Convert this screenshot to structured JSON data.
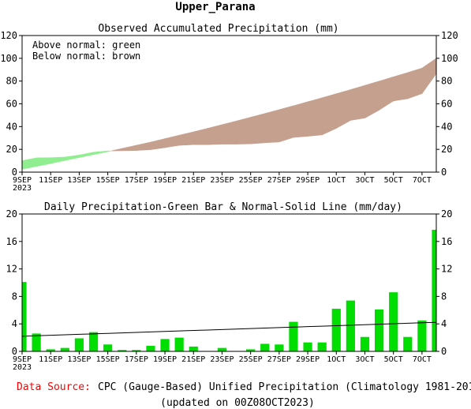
{
  "page": {
    "title": "Upper_Parana",
    "source_label": "Data Source:",
    "source_text": "CPC (Gauge-Based) Unified Precipitation (Climatology 1981-2010)",
    "updated_text": "(updated on 00Z08OCT2023)"
  },
  "colors": {
    "above": "#90ee90",
    "below": "#c5a08f",
    "bar": "#00dd00",
    "source_label": "#ff0000",
    "line": "#000000"
  },
  "x_ticks": [
    "9SEP",
    "11SEP",
    "13SEP",
    "15SEP",
    "17SEP",
    "19SEP",
    "21SEP",
    "23SEP",
    "25SEP",
    "27SEP",
    "29SEP",
    "1OCT",
    "3OCT",
    "5OCT",
    "7OCT"
  ],
  "x_year": "2023",
  "chart_data": [
    {
      "type": "area",
      "title": "Observed Accumulated Precipitation (mm)",
      "legend": [
        "Above normal: green",
        "Below normal: brown"
      ],
      "legend_position": "top-left",
      "days": [
        "9SEP",
        "10SEP",
        "11SEP",
        "12SEP",
        "13SEP",
        "14SEP",
        "15SEP",
        "16SEP",
        "17SEP",
        "18SEP",
        "19SEP",
        "20SEP",
        "21SEP",
        "22SEP",
        "23SEP",
        "24SEP",
        "25SEP",
        "26SEP",
        "27SEP",
        "28SEP",
        "29SEP",
        "30SEP",
        "1OCT",
        "2OCT",
        "3OCT",
        "4OCT",
        "5OCT",
        "6OCT",
        "7OCT",
        "8OCT"
      ],
      "y_ticks": [
        0,
        20,
        40,
        60,
        80,
        100,
        120
      ],
      "ylim": [
        0,
        120
      ],
      "grid": false,
      "series": [
        {
          "name": "Observed",
          "values": [
            10,
            12.5,
            12.7,
            13.2,
            15.0,
            17.5,
            18.6,
            18.8,
            19.0,
            19.7,
            21.5,
            23.5,
            24.1,
            24.1,
            24.6,
            24.6,
            24.8,
            25.8,
            26.5,
            30.5,
            31.5,
            32.7,
            38.5,
            45.5,
            47.5,
            54.5,
            62.5,
            64.5,
            69.0,
            86.5
          ]
        },
        {
          "name": "Normal",
          "values": [
            2.5,
            5.0,
            7.5,
            10.2,
            12.8,
            15.4,
            18.0,
            20.8,
            23.6,
            26.4,
            29.4,
            32.4,
            35.4,
            38.5,
            41.7,
            44.9,
            48.2,
            51.5,
            54.9,
            58.3,
            61.8,
            65.3,
            68.9,
            72.5,
            76.2,
            79.9,
            83.7,
            87.5,
            91.4,
            100.0
          ]
        }
      ]
    },
    {
      "type": "bar",
      "title": "Daily Precipitation-Green Bar & Normal-Solid Line (mm/day)",
      "days": [
        "9SEP",
        "10SEP",
        "11SEP",
        "12SEP",
        "13SEP",
        "14SEP",
        "15SEP",
        "16SEP",
        "17SEP",
        "18SEP",
        "19SEP",
        "20SEP",
        "21SEP",
        "22SEP",
        "23SEP",
        "24SEP",
        "25SEP",
        "26SEP",
        "27SEP",
        "28SEP",
        "29SEP",
        "30SEP",
        "1OCT",
        "2OCT",
        "3OCT",
        "4OCT",
        "5OCT",
        "6OCT",
        "7OCT",
        "8OCT"
      ],
      "y_ticks": [
        0,
        4,
        8,
        12,
        16,
        20
      ],
      "ylim": [
        0,
        20
      ],
      "grid": false,
      "series": [
        {
          "name": "Daily Precipitation",
          "values": [
            10.1,
            2.6,
            0.3,
            0.5,
            1.9,
            2.8,
            1.0,
            0.2,
            0.2,
            0.8,
            1.8,
            2.0,
            0.7,
            0.05,
            0.5,
            0.05,
            0.3,
            1.1,
            1.0,
            4.3,
            1.3,
            1.3,
            6.2,
            7.4,
            2.1,
            6.1,
            8.6,
            2.1,
            4.5,
            17.7
          ]
        },
        {
          "name": "Normal",
          "values": [
            2.2,
            2.27,
            2.34,
            2.41,
            2.48,
            2.55,
            2.62,
            2.69,
            2.76,
            2.83,
            2.9,
            2.97,
            3.04,
            3.11,
            3.18,
            3.25,
            3.32,
            3.39,
            3.46,
            3.53,
            3.6,
            3.67,
            3.74,
            3.81,
            3.88,
            3.95,
            4.02,
            4.09,
            4.16,
            4.23
          ]
        }
      ]
    }
  ]
}
